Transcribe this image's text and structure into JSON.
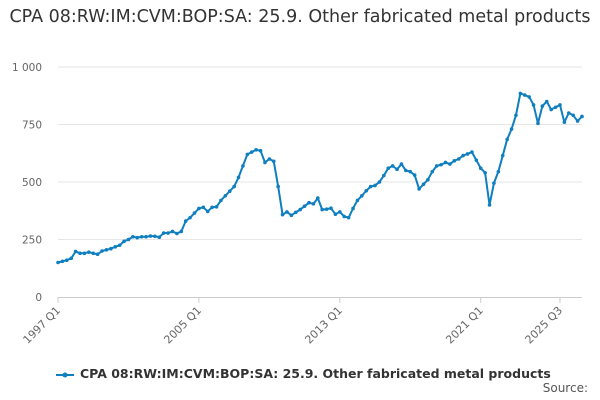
{
  "chart_data": {
    "type": "line",
    "title": "CPA 08:RW:IM:CVM:BOP:SA: 25.9. Other fabricated metal products",
    "xlabel": "",
    "ylabel": "",
    "ylim": [
      0,
      1000
    ],
    "yticks": [
      0,
      250,
      500,
      750,
      1000
    ],
    "ytick_labels": [
      "0",
      "250",
      "500",
      "750",
      "1 000"
    ],
    "xticks": [
      {
        "label": "1997 Q1",
        "index": 0
      },
      {
        "label": "2005 Q1",
        "index": 32
      },
      {
        "label": "2013 Q1",
        "index": 64
      },
      {
        "label": "2021 Q1",
        "index": 96
      },
      {
        "label": "2025 Q3",
        "index": 114
      }
    ],
    "grid": true,
    "legend_position": "bottom",
    "color": "#0f7fc0",
    "series": [
      {
        "name": "CPA 08:RW:IM:CVM:BOP:SA: 25.9. Other fabricated metal products",
        "start": "1997 Q1",
        "frequency": "quarterly",
        "values": [
          150,
          155,
          160,
          168,
          198,
          190,
          190,
          195,
          190,
          186,
          200,
          205,
          210,
          218,
          225,
          242,
          250,
          262,
          258,
          262,
          262,
          265,
          264,
          260,
          278,
          278,
          285,
          276,
          285,
          330,
          345,
          365,
          385,
          390,
          372,
          390,
          392,
          420,
          440,
          460,
          480,
          520,
          570,
          620,
          630,
          640,
          636,
          585,
          600,
          590,
          480,
          358,
          370,
          355,
          368,
          380,
          395,
          410,
          405,
          430,
          380,
          382,
          386,
          360,
          370,
          350,
          345,
          385,
          420,
          440,
          462,
          480,
          485,
          500,
          528,
          560,
          570,
          555,
          578,
          550,
          545,
          530,
          470,
          490,
          510,
          545,
          570,
          575,
          585,
          578,
          592,
          600,
          615,
          622,
          630,
          595,
          560,
          540,
          400,
          495,
          545,
          615,
          685,
          730,
          790,
          885,
          878,
          870,
          835,
          755,
          830,
          850,
          815,
          825,
          835,
          760,
          800,
          790,
          765,
          785
        ]
      }
    ]
  },
  "source_label": "Source:"
}
